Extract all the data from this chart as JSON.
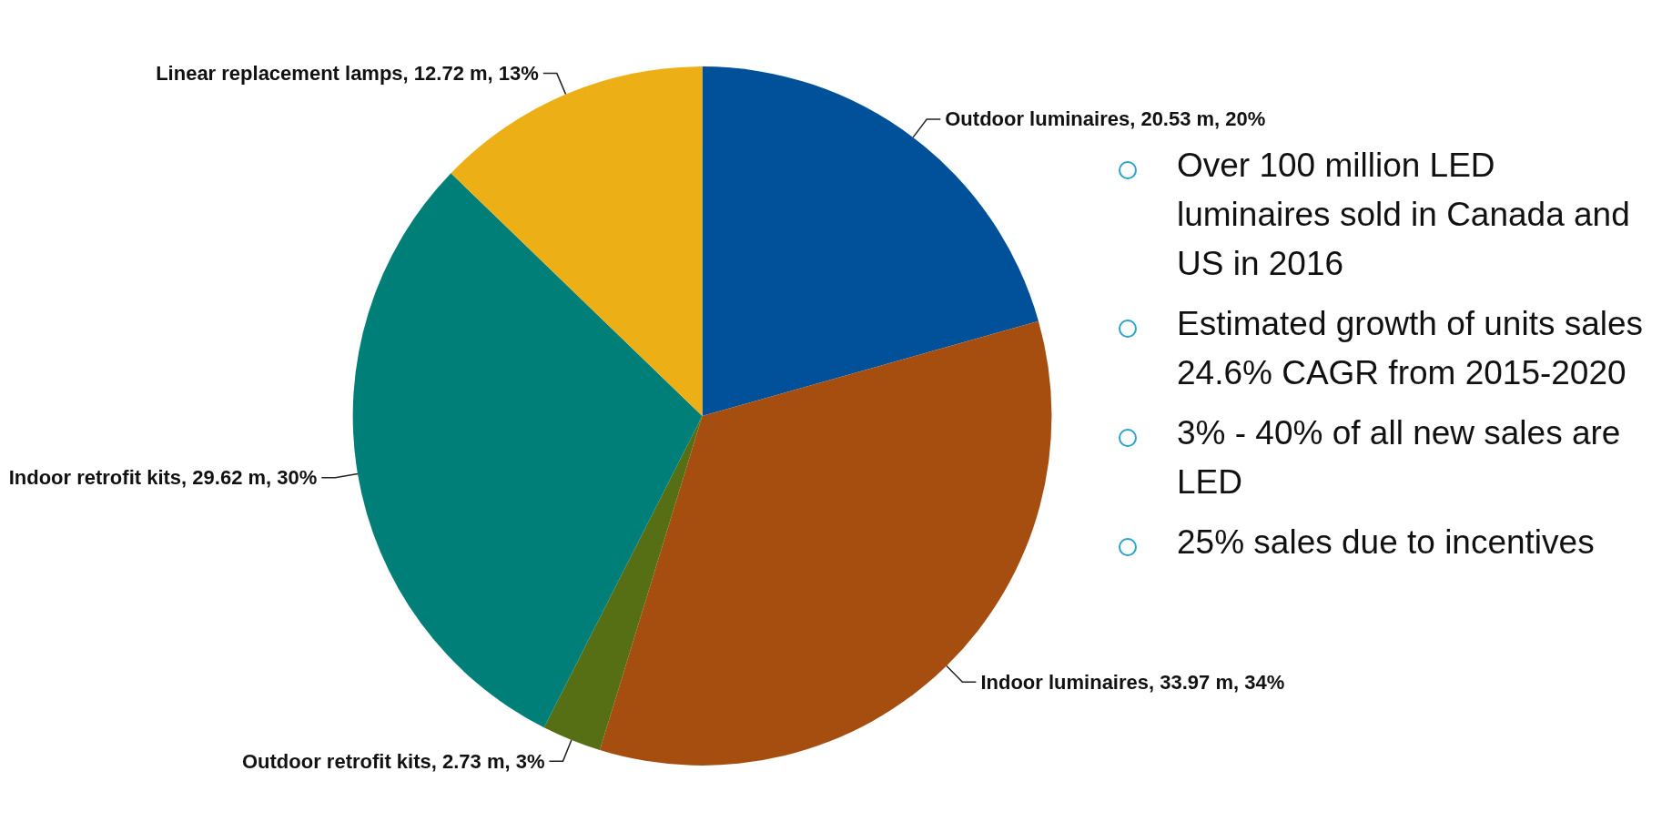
{
  "chart_data": {
    "type": "pie",
    "categories": [
      "Outdoor luminaires",
      "Indoor luminaires",
      "Outdoor retrofit kits",
      "Indoor retrofit kits",
      "Linear replacement lamps"
    ],
    "values": [
      20.53,
      33.97,
      2.73,
      29.62,
      12.72
    ],
    "value_labels": [
      "20.53 m, 20%",
      "33.97 m, 34%",
      "2.73 m, 3%",
      "29.62 m, 30%",
      "12.72 m, 13%"
    ],
    "colors": [
      "#01519a",
      "#a64d10",
      "#566e14",
      "#007f78",
      "#ecb016"
    ],
    "legend": false,
    "annotations": [
      "Over 100 million LED luminaires sold in Canada and US in 2016",
      "Estimated growth of units sales 24.6% CAGR from 2015-2020",
      "3% - 40% of all new sales are LED",
      "25% sales due to incentives"
    ]
  }
}
